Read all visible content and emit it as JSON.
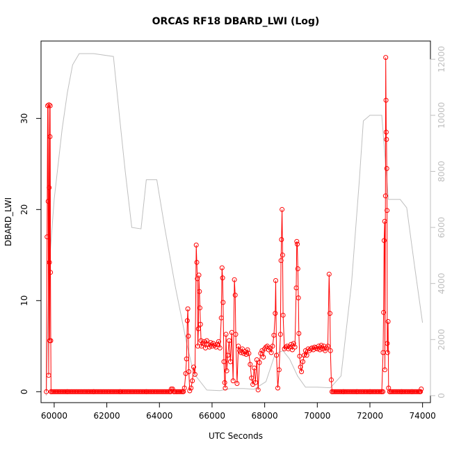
{
  "chart_data": {
    "type": "line",
    "title": "ORCAS RF18 DBARD_LWI (Log)",
    "xlabel": "UTC Seconds",
    "ylabel": "DBARD_LWI",
    "xlim": [
      59500,
      74300
    ],
    "ylim": [
      -1.2,
      38.5
    ],
    "y2lim": [
      -250,
      12650
    ],
    "x_ticks": [
      60000,
      62000,
      64000,
      66000,
      68000,
      70000,
      72000,
      74000
    ],
    "y_ticks": [
      0,
      10,
      20,
      30
    ],
    "y2_ticks": [
      0,
      2000,
      4000,
      6000,
      8000,
      10000,
      12000
    ],
    "colors": {
      "primary": "#ff0000",
      "secondary": "#bfbfbf"
    },
    "series": [
      {
        "values": [
          [
            59700,
            0
          ],
          [
            59730,
            17
          ],
          [
            59750,
            31.4
          ],
          [
            59770,
            20.9
          ],
          [
            59790,
            1.8
          ],
          [
            59800,
            31.5
          ],
          [
            59810,
            22.4
          ],
          [
            59820,
            14.2
          ],
          [
            59830,
            5.6
          ],
          [
            59840,
            28
          ],
          [
            59850,
            31.4
          ],
          [
            59860,
            13.1
          ],
          [
            59870,
            5.6
          ],
          [
            59880,
            0
          ],
          [
            60500,
            0
          ],
          [
            61500,
            0
          ],
          [
            62500,
            0
          ],
          [
            63500,
            0
          ],
          [
            64400,
            0
          ],
          [
            64450,
            0.3
          ],
          [
            64500,
            0.3
          ],
          [
            64550,
            0
          ],
          [
            64900,
            0
          ],
          [
            64950,
            0.4
          ],
          [
            65000,
            2.0
          ],
          [
            65030,
            3.6
          ],
          [
            65060,
            7.8
          ],
          [
            65080,
            9.1
          ],
          [
            65100,
            6.1
          ],
          [
            65120,
            2.2
          ],
          [
            65150,
            0.1
          ],
          [
            65200,
            0.4
          ],
          [
            65250,
            1.2
          ],
          [
            65300,
            2.7
          ],
          [
            65350,
            1.9
          ],
          [
            65400,
            16.1
          ],
          [
            65420,
            14.2
          ],
          [
            65440,
            12.4
          ],
          [
            65460,
            5.0
          ],
          [
            65480,
            6.9
          ],
          [
            65500,
            12.8
          ],
          [
            65520,
            11.0
          ],
          [
            65540,
            9.2
          ],
          [
            65560,
            7.4
          ],
          [
            65580,
            5.6
          ],
          [
            65600,
            5.0
          ],
          [
            65650,
            5.3
          ],
          [
            65700,
            5.5
          ],
          [
            65750,
            4.8
          ],
          [
            65800,
            5.6
          ],
          [
            65850,
            5.2
          ],
          [
            65900,
            4.9
          ],
          [
            65950,
            5.4
          ],
          [
            66000,
            5.0
          ],
          [
            66050,
            5.3
          ],
          [
            66100,
            5.1
          ],
          [
            66150,
            4.9
          ],
          [
            66200,
            5.2
          ],
          [
            66250,
            5.5
          ],
          [
            66300,
            4.8
          ],
          [
            66350,
            8.1
          ],
          [
            66380,
            13.6
          ],
          [
            66400,
            12.5
          ],
          [
            66420,
            9.8
          ],
          [
            66450,
            3.3
          ],
          [
            66480,
            1.0
          ],
          [
            66500,
            0.4
          ],
          [
            66530,
            6.3
          ],
          [
            66560,
            2.3
          ],
          [
            66600,
            4.0
          ],
          [
            66650,
            5.6
          ],
          [
            66700,
            3.3
          ],
          [
            66750,
            6.5
          ],
          [
            66800,
            1.2
          ],
          [
            66850,
            12.3
          ],
          [
            66880,
            10.6
          ],
          [
            66900,
            6.3
          ],
          [
            66950,
            0.9
          ],
          [
            67000,
            5.0
          ],
          [
            67050,
            4.5
          ],
          [
            67100,
            4.3
          ],
          [
            67150,
            4.7
          ],
          [
            67200,
            4.2
          ],
          [
            67250,
            4.4
          ],
          [
            67300,
            4.1
          ],
          [
            67350,
            4.6
          ],
          [
            67400,
            4.2
          ],
          [
            67450,
            3.0
          ],
          [
            67500,
            1.5
          ],
          [
            67550,
            0.8
          ],
          [
            67600,
            2.6
          ],
          [
            67650,
            1.0
          ],
          [
            67700,
            3.5
          ],
          [
            67750,
            0.2
          ],
          [
            67800,
            3.2
          ],
          [
            67850,
            4.2
          ],
          [
            67900,
            4.5
          ],
          [
            67950,
            3.8
          ],
          [
            68000,
            4.7
          ],
          [
            68050,
            4.9
          ],
          [
            68100,
            5.0
          ],
          [
            68150,
            4.6
          ],
          [
            68200,
            4.8
          ],
          [
            68250,
            4.3
          ],
          [
            68300,
            5.0
          ],
          [
            68350,
            6.2
          ],
          [
            68400,
            8.6
          ],
          [
            68420,
            12.2
          ],
          [
            68450,
            4.0
          ],
          [
            68500,
            0.4
          ],
          [
            68550,
            2.4
          ],
          [
            68600,
            6.3
          ],
          [
            68620,
            14.4
          ],
          [
            68640,
            16.7
          ],
          [
            68660,
            20.0
          ],
          [
            68680,
            15.0
          ],
          [
            68700,
            8.4
          ],
          [
            68750,
            4.7
          ],
          [
            68800,
            4.9
          ],
          [
            68850,
            5.0
          ],
          [
            68900,
            4.7
          ],
          [
            68950,
            4.9
          ],
          [
            69000,
            5.2
          ],
          [
            69050,
            4.6
          ],
          [
            69100,
            5.3
          ],
          [
            69150,
            4.9
          ],
          [
            69200,
            11.4
          ],
          [
            69220,
            16.5
          ],
          [
            69240,
            16.2
          ],
          [
            69260,
            13.5
          ],
          [
            69280,
            10.3
          ],
          [
            69300,
            6.4
          ],
          [
            69330,
            3.9
          ],
          [
            69360,
            2.7
          ],
          [
            69400,
            2.2
          ],
          [
            69450,
            3.3
          ],
          [
            69500,
            4.0
          ],
          [
            69550,
            4.5
          ],
          [
            69600,
            4.0
          ],
          [
            69650,
            4.7
          ],
          [
            69700,
            4.5
          ],
          [
            69750,
            4.7
          ],
          [
            69800,
            4.8
          ],
          [
            69850,
            4.6
          ],
          [
            69900,
            4.9
          ],
          [
            69950,
            4.8
          ],
          [
            70000,
            4.7
          ],
          [
            70050,
            5.0
          ],
          [
            70100,
            4.6
          ],
          [
            70150,
            5.1
          ],
          [
            70200,
            4.7
          ],
          [
            70250,
            5.0
          ],
          [
            70300,
            4.5
          ],
          [
            70350,
            4.8
          ],
          [
            70400,
            5.0
          ],
          [
            70450,
            12.9
          ],
          [
            70480,
            8.6
          ],
          [
            70500,
            4.5
          ],
          [
            70530,
            1.3
          ],
          [
            70560,
            0
          ],
          [
            71000,
            0
          ],
          [
            71500,
            0
          ],
          [
            72000,
            0
          ],
          [
            72450,
            0
          ],
          [
            72500,
            4.3
          ],
          [
            72520,
            8.7
          ],
          [
            72540,
            16.6
          ],
          [
            72560,
            18.7
          ],
          [
            72570,
            2.4
          ],
          [
            72590,
            21.5
          ],
          [
            72600,
            36.7
          ],
          [
            72610,
            32.0
          ],
          [
            72620,
            28.5
          ],
          [
            72630,
            27.7
          ],
          [
            72640,
            24.5
          ],
          [
            72650,
            19.9
          ],
          [
            72660,
            5.3
          ],
          [
            72670,
            4.3
          ],
          [
            72690,
            7.7
          ],
          [
            72710,
            0.4
          ],
          [
            72750,
            0
          ],
          [
            73200,
            0
          ],
          [
            73600,
            0
          ],
          [
            73900,
            0
          ],
          [
            73950,
            0.3
          ]
        ]
      },
      {
        "values": [
          [
            59700,
            0
          ],
          [
            59800,
            4500
          ],
          [
            60000,
            7000
          ],
          [
            60300,
            9500
          ],
          [
            60500,
            10800
          ],
          [
            60700,
            11800
          ],
          [
            60950,
            12200
          ],
          [
            61500,
            12200
          ],
          [
            62250,
            12100
          ],
          [
            62500,
            9800
          ],
          [
            62700,
            8000
          ],
          [
            62950,
            6000
          ],
          [
            63300,
            5950
          ],
          [
            63500,
            7700
          ],
          [
            63900,
            7700
          ],
          [
            64200,
            6000
          ],
          [
            64600,
            3900
          ],
          [
            65050,
            1800
          ],
          [
            65300,
            800
          ],
          [
            65800,
            200
          ],
          [
            66300,
            180
          ],
          [
            66700,
            250
          ],
          [
            67200,
            250
          ],
          [
            67600,
            230
          ],
          [
            68050,
            500
          ],
          [
            68400,
            1500
          ],
          [
            68700,
            1600
          ],
          [
            68950,
            1300
          ],
          [
            69250,
            700
          ],
          [
            69550,
            300
          ],
          [
            70000,
            300
          ],
          [
            70500,
            280
          ],
          [
            70900,
            700
          ],
          [
            71300,
            4000
          ],
          [
            71600,
            7700
          ],
          [
            71750,
            9800
          ],
          [
            72000,
            10000
          ],
          [
            72450,
            10000
          ],
          [
            72700,
            7000
          ],
          [
            73150,
            7000
          ],
          [
            73400,
            6700
          ],
          [
            73700,
            4600
          ],
          [
            74000,
            2600
          ]
        ]
      }
    ]
  }
}
